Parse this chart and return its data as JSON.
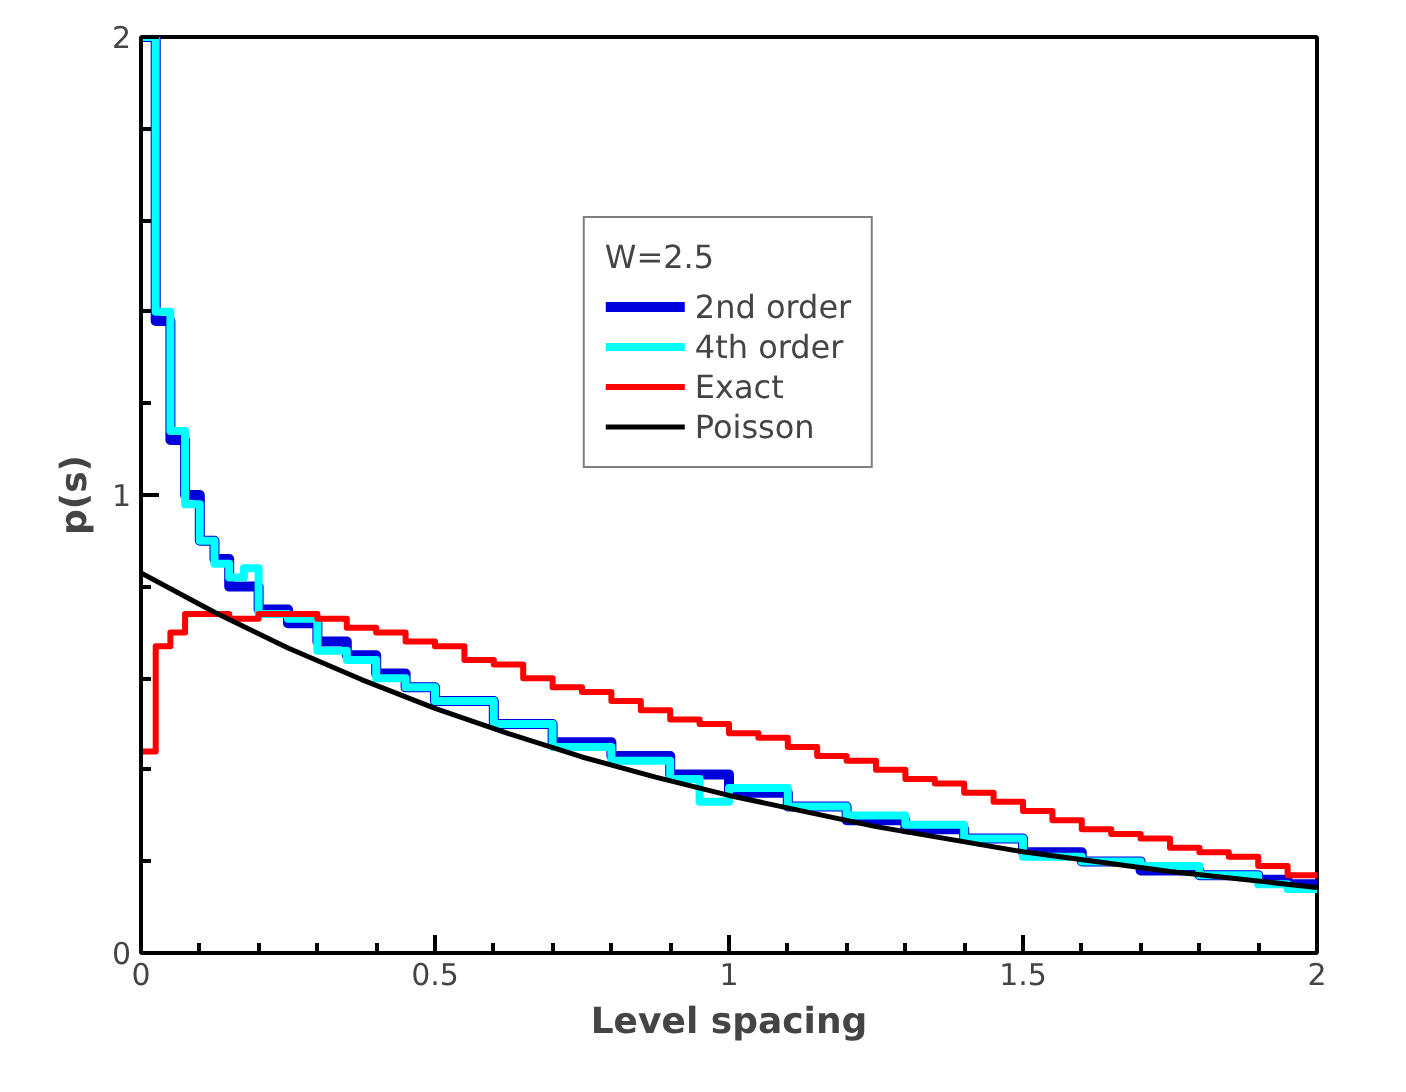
{
  "chart_data": {
    "type": "step",
    "xlabel": "Level spacing",
    "ylabel": "p(s)",
    "legend_title": "W=2.5",
    "xlim": [
      0,
      2
    ],
    "ylim": [
      0,
      2
    ],
    "xticks": [
      0,
      0.5,
      1,
      1.5,
      2
    ],
    "yticks": [
      0,
      1,
      2
    ],
    "grid": false,
    "legend": "top",
    "series": [
      {
        "name": "2nd order",
        "color": "#0000dd",
        "x": [
          0,
          0.025,
          0.05,
          0.075,
          0.1,
          0.125,
          0.15,
          0.2,
          0.25,
          0.3,
          0.35,
          0.4,
          0.45,
          0.5,
          0.6,
          0.7,
          0.8,
          0.9,
          1.0,
          1.1,
          1.2,
          1.3,
          1.4,
          1.5,
          1.6,
          1.7,
          1.8,
          1.9,
          1.95,
          2
        ],
        "values": [
          2.0,
          1.38,
          1.12,
          1.0,
          0.9,
          0.86,
          0.8,
          0.75,
          0.72,
          0.68,
          0.65,
          0.61,
          0.58,
          0.55,
          0.5,
          0.46,
          0.43,
          0.39,
          0.35,
          0.32,
          0.29,
          0.27,
          0.25,
          0.22,
          0.2,
          0.18,
          0.17,
          0.16,
          0.15,
          0.15
        ]
      },
      {
        "name": "4th order",
        "color": "#00ffff",
        "x": [
          0,
          0.025,
          0.05,
          0.075,
          0.1,
          0.125,
          0.15,
          0.175,
          0.2,
          0.25,
          0.3,
          0.35,
          0.4,
          0.45,
          0.5,
          0.6,
          0.7,
          0.8,
          0.9,
          0.95,
          1.0,
          1.1,
          1.2,
          1.3,
          1.4,
          1.5,
          1.6,
          1.7,
          1.8,
          1.9,
          1.95,
          2
        ],
        "values": [
          2.0,
          1.4,
          1.14,
          0.98,
          0.9,
          0.85,
          0.82,
          0.84,
          0.74,
          0.73,
          0.66,
          0.64,
          0.6,
          0.58,
          0.55,
          0.5,
          0.45,
          0.42,
          0.38,
          0.33,
          0.36,
          0.32,
          0.3,
          0.28,
          0.25,
          0.21,
          0.2,
          0.19,
          0.17,
          0.15,
          0.14,
          0.14
        ]
      },
      {
        "name": "Exact",
        "color": "#ff0000",
        "x": [
          0,
          0.025,
          0.05,
          0.075,
          0.1,
          0.15,
          0.2,
          0.25,
          0.3,
          0.35,
          0.4,
          0.45,
          0.5,
          0.55,
          0.6,
          0.65,
          0.7,
          0.75,
          0.8,
          0.85,
          0.9,
          0.95,
          1.0,
          1.05,
          1.1,
          1.15,
          1.2,
          1.25,
          1.3,
          1.35,
          1.4,
          1.45,
          1.5,
          1.55,
          1.6,
          1.65,
          1.7,
          1.75,
          1.8,
          1.85,
          1.9,
          1.95,
          2
        ],
        "values": [
          0.44,
          0.67,
          0.7,
          0.74,
          0.74,
          0.73,
          0.74,
          0.74,
          0.73,
          0.71,
          0.7,
          0.68,
          0.67,
          0.64,
          0.63,
          0.6,
          0.58,
          0.57,
          0.55,
          0.53,
          0.51,
          0.5,
          0.48,
          0.47,
          0.45,
          0.43,
          0.42,
          0.4,
          0.38,
          0.37,
          0.35,
          0.33,
          0.31,
          0.29,
          0.27,
          0.26,
          0.25,
          0.23,
          0.22,
          0.21,
          0.19,
          0.17,
          0.17
        ]
      },
      {
        "name": "Poisson",
        "color": "#000000",
        "type": "line",
        "x": [
          0,
          0.125,
          0.25,
          0.375,
          0.5,
          0.625,
          0.75,
          0.875,
          1.0,
          1.25,
          1.5,
          1.75,
          2
        ],
        "values": [
          0.83,
          0.744,
          0.666,
          0.597,
          0.534,
          0.479,
          0.428,
          0.384,
          0.344,
          0.276,
          0.221,
          0.178,
          0.143
        ]
      }
    ]
  }
}
